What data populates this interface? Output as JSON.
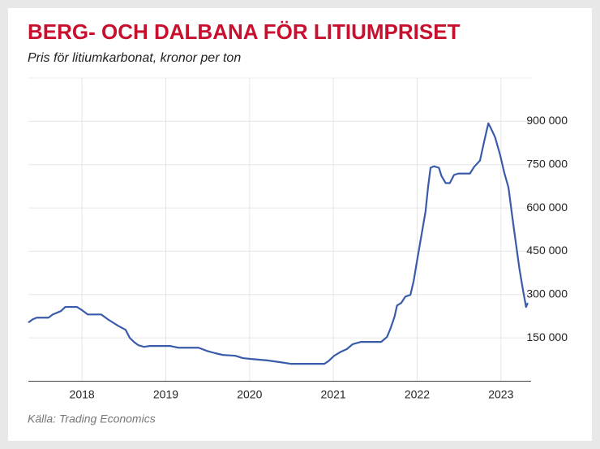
{
  "chart_data": {
    "type": "line",
    "title": "BERG- OCH DALBANA FÖR LITIUMPRISET",
    "subtitle": "Pris för litiumkarbonat, kronor per ton",
    "source": "Källa: Trading Economics",
    "x": [
      2017.36,
      2017.41,
      2017.46,
      2017.6,
      2017.65,
      2017.75,
      2017.8,
      2017.94,
      2017.99,
      2018.07,
      2018.23,
      2018.31,
      2018.43,
      2018.52,
      2018.57,
      2018.62,
      2018.67,
      2018.74,
      2018.81,
      2019.05,
      2019.15,
      2019.39,
      2019.49,
      2019.59,
      2019.68,
      2019.83,
      2019.92,
      2020.02,
      2020.21,
      2020.36,
      2020.5,
      2020.89,
      2020.94,
      2021.01,
      2021.09,
      2021.16,
      2021.23,
      2021.33,
      2021.57,
      2021.64,
      2021.68,
      2021.73,
      2021.76,
      2021.81,
      2021.86,
      2021.92,
      2021.96,
      2022.0,
      2022.05,
      2022.1,
      2022.13,
      2022.16,
      2022.2,
      2022.26,
      2022.29,
      2022.34,
      2022.39,
      2022.44,
      2022.49,
      2022.63,
      2022.68,
      2022.75,
      2022.79,
      2022.83,
      2022.85,
      2022.88,
      2022.93,
      2022.99,
      2023.04,
      2023.09,
      2023.14,
      2023.18,
      2023.22,
      2023.26,
      2023.3,
      2023.32
    ],
    "series": [
      {
        "name": "Litiumkarbonat",
        "color": "#3a5ba9",
        "values": [
          203000,
          214000,
          220000,
          220000,
          231000,
          243000,
          257000,
          257000,
          248000,
          231000,
          231000,
          214000,
          192000,
          178000,
          150000,
          136000,
          125000,
          119000,
          122000,
          122000,
          116000,
          116000,
          105000,
          97000,
          91000,
          88000,
          80000,
          77000,
          72000,
          66000,
          60000,
          60000,
          69000,
          88000,
          102000,
          111000,
          128000,
          136000,
          136000,
          153000,
          181000,
          223000,
          262000,
          271000,
          293000,
          299000,
          349000,
          419000,
          503000,
          587000,
          671000,
          739000,
          744000,
          739000,
          711000,
          686000,
          686000,
          714000,
          719000,
          719000,
          742000,
          764000,
          817000,
          868000,
          893000,
          876000,
          845000,
          784000,
          722000,
          671000,
          560000,
          475000,
          391000,
          321000,
          257000,
          271000
        ]
      }
    ],
    "xlim": [
      2017.36,
      2023.36
    ],
    "xticks": [
      2018,
      2019,
      2020,
      2021,
      2022,
      2023
    ],
    "ylim": [
      0,
      1050000
    ],
    "yticks": [
      {
        "value": 150000,
        "label": "150 000"
      },
      {
        "value": 300000,
        "label": "300 000"
      },
      {
        "value": 450000,
        "label": "450 000"
      },
      {
        "value": 600000,
        "label": "600 000"
      },
      {
        "value": 750000,
        "label": "750 000"
      },
      {
        "value": 900000,
        "label": "900 000"
      }
    ],
    "grid": true
  }
}
